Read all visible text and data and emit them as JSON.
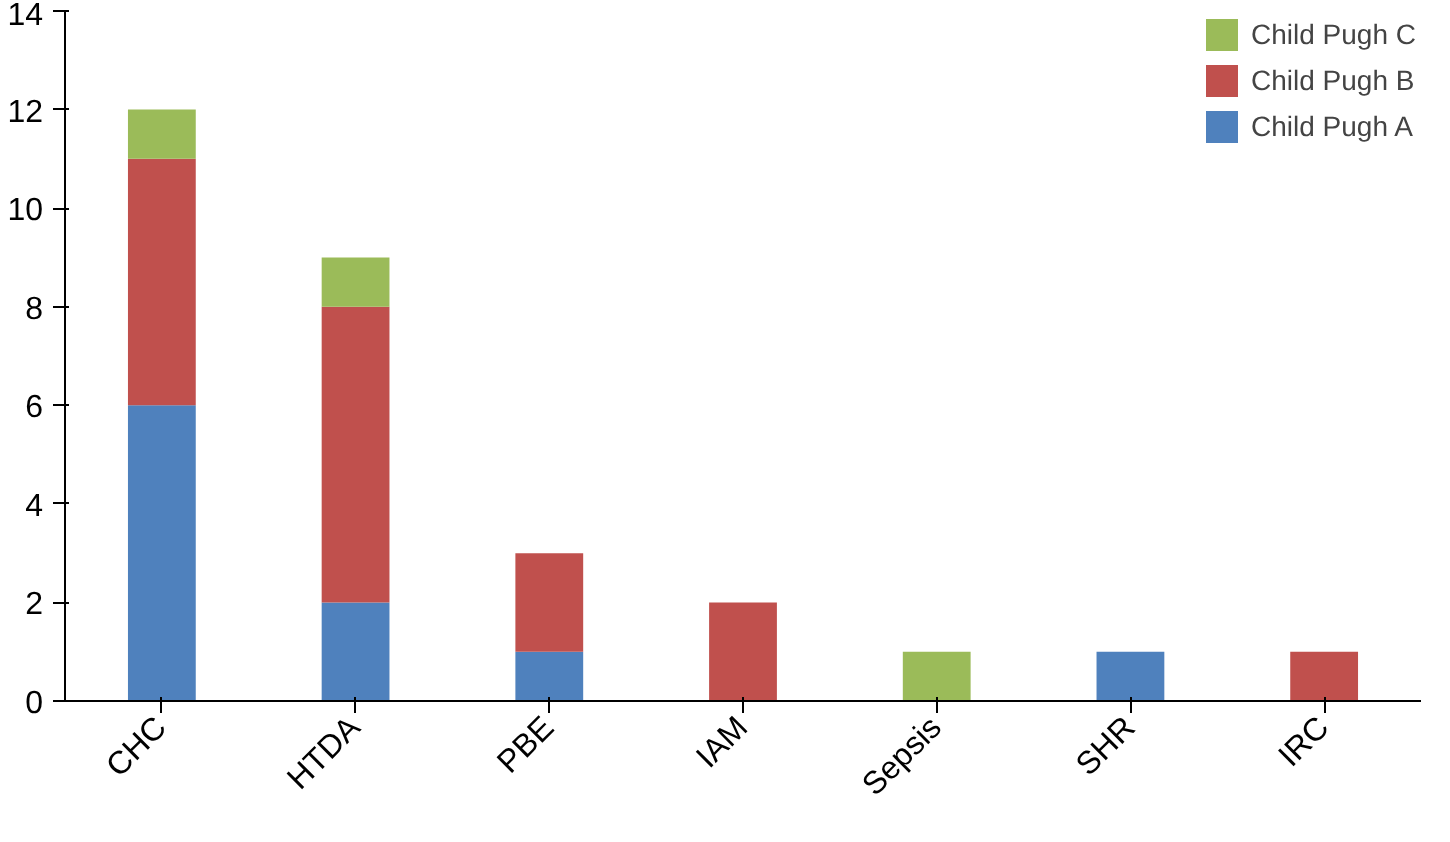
{
  "chart_data": {
    "type": "bar",
    "stacked": true,
    "categories": [
      "CHC",
      "HTDA",
      "PBE",
      "IAM",
      "Sepsis",
      "SHR",
      "IRC"
    ],
    "series": [
      {
        "name": "Child Pugh A",
        "color": "#4f81bd",
        "values": [
          6,
          2,
          1,
          0,
          0,
          1,
          0
        ]
      },
      {
        "name": "Child Pugh B",
        "color": "#c0504d",
        "values": [
          5,
          6,
          2,
          2,
          0,
          0,
          1
        ]
      },
      {
        "name": "Child Pugh C",
        "color": "#9bbb59",
        "values": [
          1,
          1,
          0,
          0,
          1,
          0,
          0
        ]
      }
    ],
    "ylim": [
      0,
      14
    ],
    "yticks": [
      0,
      2,
      4,
      6,
      8,
      10,
      12,
      14
    ],
    "grid": false,
    "legend": "right"
  }
}
